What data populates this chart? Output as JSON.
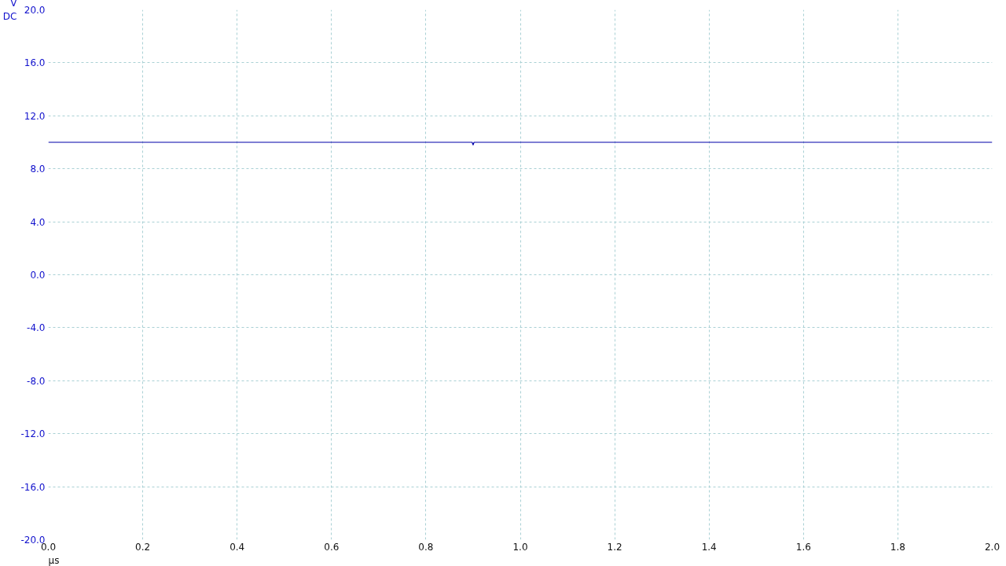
{
  "chart_data": {
    "type": "line",
    "xlabel": "µs",
    "ylabel": "V\nDC",
    "x": [
      0,
      0.898,
      0.9,
      0.902,
      2.0
    ],
    "series": [
      {
        "color": "#0000aa",
        "values": [
          10.0,
          10.0,
          9.8,
          10.0,
          10.0
        ]
      }
    ],
    "xlim": [
      0,
      2.0
    ],
    "ylim": [
      -20.0,
      20.0
    ],
    "xticks": [
      {
        "value": 0,
        "label": "0.0"
      },
      0.2,
      0.4,
      0.6,
      0.8,
      {
        "value": 1,
        "label": "1.0"
      },
      1.2,
      1.4,
      1.6,
      1.8,
      {
        "value": 2,
        "label": "2.0"
      }
    ],
    "yticks": [
      {
        "value": -20,
        "label": "-20.0"
      },
      {
        "value": -16,
        "label": "-16.0"
      },
      {
        "value": -12,
        "label": "-12.0"
      },
      {
        "value": -8,
        "label": "-8.0"
      },
      {
        "value": -4,
        "label": "-4.0"
      },
      {
        "value": 0,
        "label": "0.0"
      },
      {
        "value": 4,
        "label": "4.0"
      },
      {
        "value": 8,
        "label": "8.0"
      },
      {
        "value": 12,
        "label": "12.0"
      },
      {
        "value": 16,
        "label": "16.0"
      },
      {
        "value": 20,
        "label": "20.0"
      }
    ],
    "grid": true,
    "line_style": "solid"
  }
}
